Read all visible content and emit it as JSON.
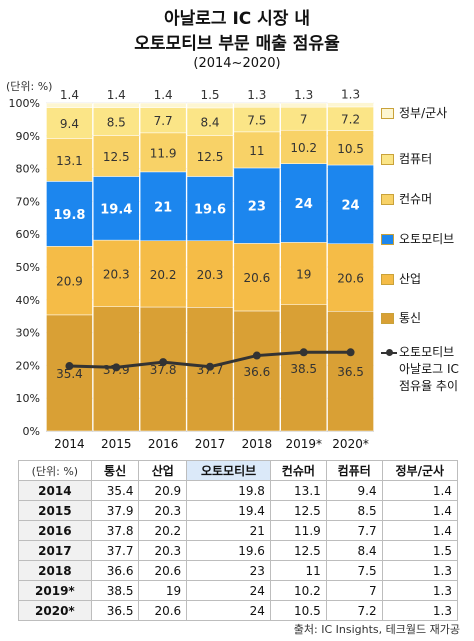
{
  "title_line1": "아날로그 IC 시장 내",
  "title_line2": "오토모티브 부문 매출 점유율",
  "period": "(2014~2020)",
  "unit": "(단위: %)",
  "source": "출처: IC Insights, 테크월드 재가공",
  "chart_data": {
    "type": "bar",
    "stacked": true,
    "categories": [
      "2014",
      "2015",
      "2016",
      "2017",
      "2018",
      "2019*",
      "2020*"
    ],
    "ylim": [
      0,
      100
    ],
    "yticks": [
      "0%",
      "10%",
      "20%",
      "30%",
      "40%",
      "50%",
      "60%",
      "70%",
      "80%",
      "90%",
      "100%"
    ],
    "grid": true,
    "legend_position": "right",
    "series": [
      {
        "name": "통신",
        "color": "#d9a035",
        "values": [
          35.4,
          37.9,
          37.8,
          37.7,
          36.6,
          38.5,
          36.5
        ]
      },
      {
        "name": "산업",
        "color": "#f5bc47",
        "values": [
          20.9,
          20.3,
          20.2,
          20.3,
          20.6,
          19,
          20.6
        ]
      },
      {
        "name": "오토모티브",
        "color": "#1c86ee",
        "values": [
          19.8,
          19.4,
          21,
          19.6,
          23,
          24,
          24
        ]
      },
      {
        "name": "컨슈머",
        "color": "#f8d267",
        "values": [
          13.1,
          12.5,
          11.9,
          12.5,
          11,
          10.2,
          10.5
        ]
      },
      {
        "name": "컴퓨터",
        "color": "#fbe587",
        "values": [
          9.4,
          8.5,
          7.7,
          8.4,
          7.5,
          7,
          7.2
        ]
      },
      {
        "name": "정부/군사",
        "color": "#fdf6d2",
        "values": [
          1.4,
          1.4,
          1.4,
          1.5,
          1.3,
          1.3,
          1.3
        ]
      }
    ],
    "line_series": {
      "name": "오토모티브 아날로그 IC 점유율 추이",
      "name_lines": [
        "오토모티브",
        "아날로그 IC",
        "점유율 추이"
      ],
      "color": "#333333",
      "values": [
        19.8,
        19.4,
        21,
        19.6,
        23,
        24,
        24
      ]
    }
  },
  "table": {
    "headers": [
      "(단위: %)",
      "통신",
      "산업",
      "오토모티브",
      "컨슈머",
      "컴퓨터",
      "정부/군사"
    ],
    "rows": [
      [
        "2014",
        "35.4",
        "20.9",
        "19.8",
        "13.1",
        "9.4",
        "1.4"
      ],
      [
        "2015",
        "37.9",
        "20.3",
        "19.4",
        "12.5",
        "8.5",
        "1.4"
      ],
      [
        "2016",
        "37.8",
        "20.2",
        "21",
        "11.9",
        "7.7",
        "1.4"
      ],
      [
        "2017",
        "37.7",
        "20.3",
        "19.6",
        "12.5",
        "8.4",
        "1.5"
      ],
      [
        "2018",
        "36.6",
        "20.6",
        "23",
        "11",
        "7.5",
        "1.3"
      ],
      [
        "2019*",
        "38.5",
        "19",
        "24",
        "10.2",
        "7",
        "1.3"
      ],
      [
        "2020*",
        "36.5",
        "20.6",
        "24",
        "10.5",
        "7.2",
        "1.3"
      ]
    ]
  }
}
